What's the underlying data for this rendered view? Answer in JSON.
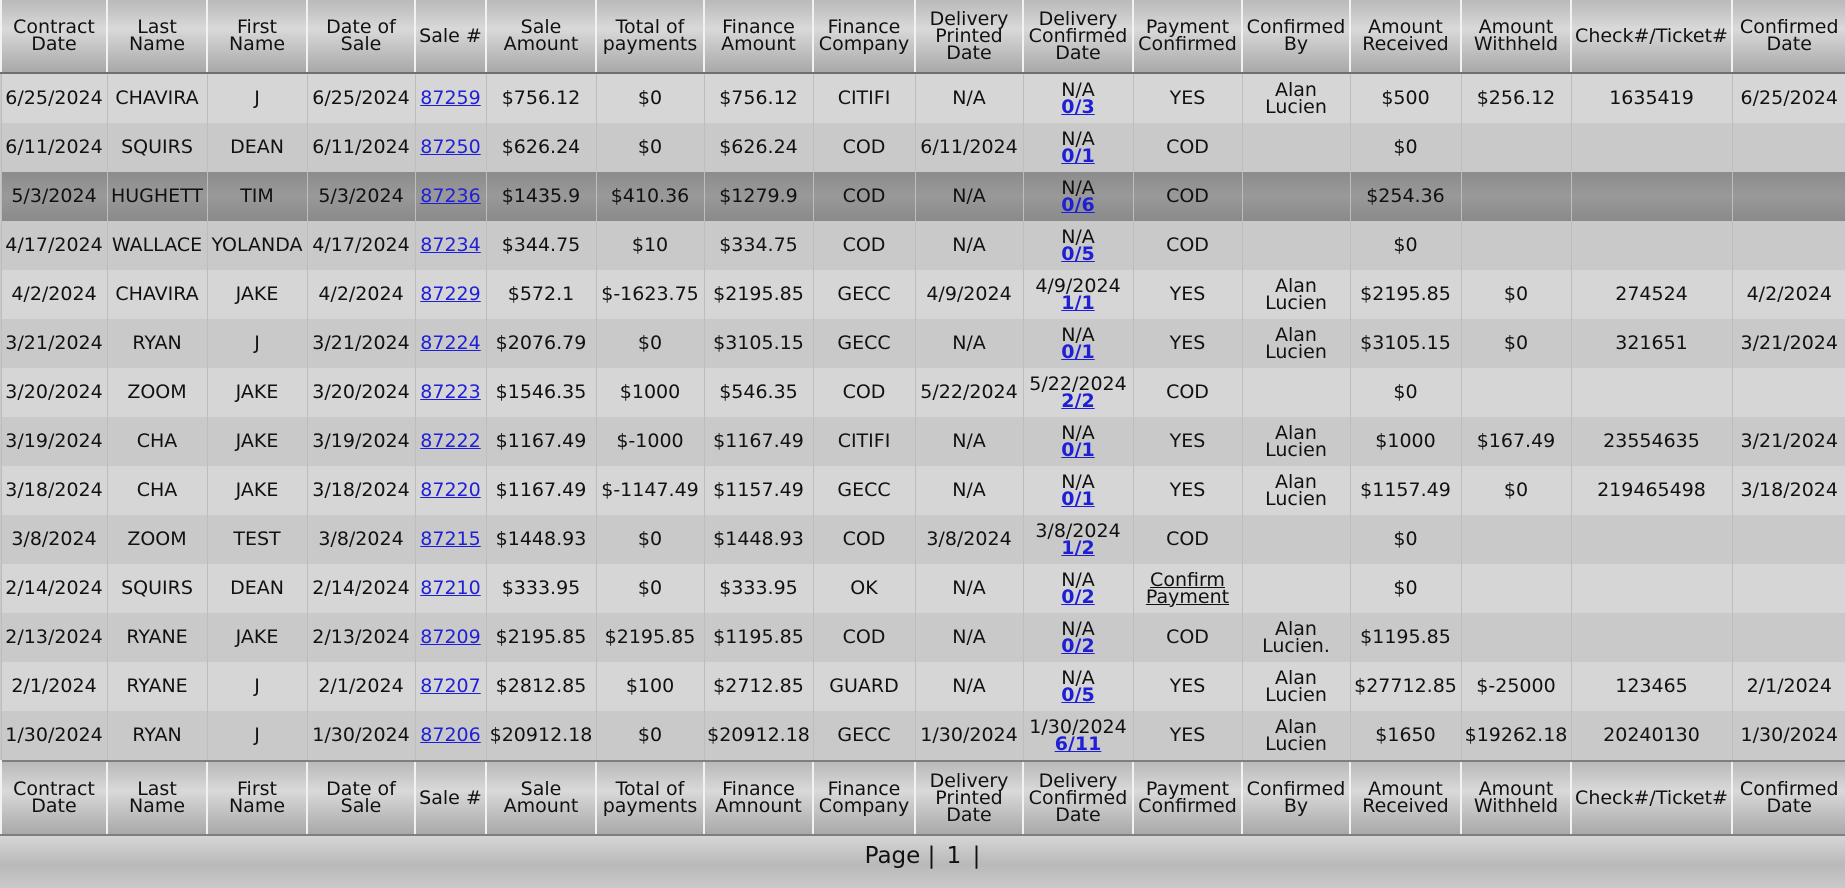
{
  "headers": [
    "Contract Date",
    "Last Name",
    "First Name",
    "Date of Sale",
    "Sale #",
    "Sale Amount",
    "Total of payments",
    "Finance Amount",
    "Finance Company",
    "Delivery Printed Date",
    "Delivery Confirmed Date",
    "Payment Confirmed",
    "Confirmed By",
    "Amount Received",
    "Amount Withheld",
    "Check#/Ticket#",
    "Confirmed Date"
  ],
  "footer_headers": [
    "Contract Date",
    "Last Name",
    "First Name",
    "Date of Sale",
    "Sale #",
    "Sale Amount",
    "Total of payments",
    "Finance Amnount",
    "Finance Company",
    "Delivery Printed Date",
    "Delivery Confirmed Date",
    "Payment Confirmed",
    "Confirmed By",
    "Amount Received",
    "Amount Withheld",
    "Check#/Ticket#",
    "Confirmed Date"
  ],
  "rows": [
    {
      "contract_date": "6/25/2024",
      "last": "CHAVIRA",
      "first": "J",
      "sale_date": "6/25/2024",
      "sale_no": "87259",
      "sale_amount": "$756.12",
      "total_payments": "$0",
      "finance_amount": "$756.12",
      "finance_company": "CITIFI",
      "delivery_printed": "N/A",
      "delivery_confirmed": "N/A",
      "delivery_count": "0/3",
      "payment_confirmed": "YES",
      "confirmed_by": "Alan Lucien",
      "amount_received": "$500",
      "amount_withheld": "$256.12",
      "check_no": "1635419",
      "confirmed_date": "6/25/2024"
    },
    {
      "contract_date": "6/11/2024",
      "last": "SQUIRS",
      "first": "DEAN",
      "sale_date": "6/11/2024",
      "sale_no": "87250",
      "sale_amount": "$626.24",
      "total_payments": "$0",
      "finance_amount": "$626.24",
      "finance_company": "COD",
      "delivery_printed": "6/11/2024",
      "delivery_confirmed": "N/A",
      "delivery_count": "0/1",
      "payment_confirmed": "COD",
      "confirmed_by": "",
      "amount_received": "$0",
      "amount_withheld": "",
      "check_no": "",
      "confirmed_date": ""
    },
    {
      "contract_date": "5/3/2024",
      "last": "HUGHETT",
      "first": "TIM",
      "sale_date": "5/3/2024",
      "sale_no": "87236",
      "sale_amount": "$1435.9",
      "total_payments": "$410.36",
      "finance_amount": "$1279.9",
      "finance_company": "COD",
      "delivery_printed": "N/A",
      "delivery_confirmed": "N/A",
      "delivery_count": "0/6",
      "payment_confirmed": "COD",
      "confirmed_by": "",
      "amount_received": "$254.36",
      "amount_withheld": "",
      "check_no": "",
      "confirmed_date": "",
      "selected": true
    },
    {
      "contract_date": "4/17/2024",
      "last": "WALLACE",
      "first": "YOLANDA",
      "sale_date": "4/17/2024",
      "sale_no": "87234",
      "sale_amount": "$344.75",
      "total_payments": "$10",
      "finance_amount": "$334.75",
      "finance_company": "COD",
      "delivery_printed": "N/A",
      "delivery_confirmed": "N/A",
      "delivery_count": "0/5",
      "payment_confirmed": "COD",
      "confirmed_by": "",
      "amount_received": "$0",
      "amount_withheld": "",
      "check_no": "",
      "confirmed_date": ""
    },
    {
      "contract_date": "4/2/2024",
      "last": "CHAVIRA",
      "first": "JAKE",
      "sale_date": "4/2/2024",
      "sale_no": "87229",
      "sale_amount": "$572.1",
      "total_payments": "$-1623.75",
      "finance_amount": "$2195.85",
      "finance_company": "GECC",
      "delivery_printed": "4/9/2024",
      "delivery_confirmed": "4/9/2024",
      "delivery_count": "1/1",
      "payment_confirmed": "YES",
      "confirmed_by": "Alan Lucien",
      "amount_received": "$2195.85",
      "amount_withheld": "$0",
      "check_no": "274524",
      "confirmed_date": "4/2/2024"
    },
    {
      "contract_date": "3/21/2024",
      "last": "RYAN",
      "first": "J",
      "sale_date": "3/21/2024",
      "sale_no": "87224",
      "sale_amount": "$2076.79",
      "total_payments": "$0",
      "finance_amount": "$3105.15",
      "finance_company": "GECC",
      "delivery_printed": "N/A",
      "delivery_confirmed": "N/A",
      "delivery_count": "0/1",
      "payment_confirmed": "YES",
      "confirmed_by": "Alan Lucien",
      "amount_received": "$3105.15",
      "amount_withheld": "$0",
      "check_no": "321651",
      "confirmed_date": "3/21/2024"
    },
    {
      "contract_date": "3/20/2024",
      "last": "ZOOM",
      "first": "JAKE",
      "sale_date": "3/20/2024",
      "sale_no": "87223",
      "sale_amount": "$1546.35",
      "total_payments": "$1000",
      "finance_amount": "$546.35",
      "finance_company": "COD",
      "delivery_printed": "5/22/2024",
      "delivery_confirmed": "5/22/2024",
      "delivery_count": "2/2",
      "payment_confirmed": "COD",
      "confirmed_by": "",
      "amount_received": "$0",
      "amount_withheld": "",
      "check_no": "",
      "confirmed_date": ""
    },
    {
      "contract_date": "3/19/2024",
      "last": "CHA",
      "first": "JAKE",
      "sale_date": "3/19/2024",
      "sale_no": "87222",
      "sale_amount": "$1167.49",
      "total_payments": "$-1000",
      "finance_amount": "$1167.49",
      "finance_company": "CITIFI",
      "delivery_printed": "N/A",
      "delivery_confirmed": "N/A",
      "delivery_count": "0/1",
      "payment_confirmed": "YES",
      "confirmed_by": "Alan Lucien",
      "amount_received": "$1000",
      "amount_withheld": "$167.49",
      "check_no": "23554635",
      "confirmed_date": "3/21/2024"
    },
    {
      "contract_date": "3/18/2024",
      "last": "CHA",
      "first": "JAKE",
      "sale_date": "3/18/2024",
      "sale_no": "87220",
      "sale_amount": "$1167.49",
      "total_payments": "$-1147.49",
      "finance_amount": "$1157.49",
      "finance_company": "GECC",
      "delivery_printed": "N/A",
      "delivery_confirmed": "N/A",
      "delivery_count": "0/1",
      "payment_confirmed": "YES",
      "confirmed_by": "Alan Lucien",
      "amount_received": "$1157.49",
      "amount_withheld": "$0",
      "check_no": "219465498",
      "confirmed_date": "3/18/2024"
    },
    {
      "contract_date": "3/8/2024",
      "last": "ZOOM",
      "first": "TEST",
      "sale_date": "3/8/2024",
      "sale_no": "87215",
      "sale_amount": "$1448.93",
      "total_payments": "$0",
      "finance_amount": "$1448.93",
      "finance_company": "COD",
      "delivery_printed": "3/8/2024",
      "delivery_confirmed": "3/8/2024",
      "delivery_count": "1/2",
      "payment_confirmed": "COD",
      "confirmed_by": "",
      "amount_received": "$0",
      "amount_withheld": "",
      "check_no": "",
      "confirmed_date": ""
    },
    {
      "contract_date": "2/14/2024",
      "last": "SQUIRS",
      "first": "DEAN",
      "sale_date": "2/14/2024",
      "sale_no": "87210",
      "sale_amount": "$333.95",
      "total_payments": "$0",
      "finance_amount": "$333.95",
      "finance_company": "OK",
      "delivery_printed": "N/A",
      "delivery_confirmed": "N/A",
      "delivery_count": "0/2",
      "payment_confirmed": "Confirm Payment",
      "payment_link": true,
      "confirmed_by": "",
      "amount_received": "$0",
      "amount_withheld": "",
      "check_no": "",
      "confirmed_date": ""
    },
    {
      "contract_date": "2/13/2024",
      "last": "RYANE",
      "first": "JAKE",
      "sale_date": "2/13/2024",
      "sale_no": "87209",
      "sale_amount": "$2195.85",
      "total_payments": "$2195.85",
      "finance_amount": "$1195.85",
      "finance_company": "COD",
      "delivery_printed": "N/A",
      "delivery_confirmed": "N/A",
      "delivery_count": "0/2",
      "payment_confirmed": "COD",
      "confirmed_by": "Alan Lucien.",
      "amount_received": "$1195.85",
      "amount_withheld": "",
      "check_no": "",
      "confirmed_date": ""
    },
    {
      "contract_date": "2/1/2024",
      "last": "RYANE",
      "first": "J",
      "sale_date": "2/1/2024",
      "sale_no": "87207",
      "sale_amount": "$2812.85",
      "total_payments": "$100",
      "finance_amount": "$2712.85",
      "finance_company": "GUARD",
      "delivery_printed": "N/A",
      "delivery_confirmed": "N/A",
      "delivery_count": "0/5",
      "payment_confirmed": "YES",
      "confirmed_by": "Alan Lucien",
      "amount_received": "$27712.85",
      "amount_withheld": "$-25000",
      "check_no": "123465",
      "confirmed_date": "2/1/2024"
    },
    {
      "contract_date": "1/30/2024",
      "last": "RYAN",
      "first": "J",
      "sale_date": "1/30/2024",
      "sale_no": "87206",
      "sale_amount": "$20912.18",
      "total_payments": "$0",
      "finance_amount": "$20912.18",
      "finance_company": "GECC",
      "delivery_printed": "1/30/2024",
      "delivery_confirmed": "1/30/2024",
      "delivery_count": "6/11",
      "payment_confirmed": "YES",
      "confirmed_by": "Alan Lucien",
      "amount_received": "$1650",
      "amount_withheld": "$19262.18",
      "check_no": "20240130",
      "confirmed_date": "1/30/2024"
    }
  ],
  "pager": {
    "label": "Page |",
    "pages": [
      "1"
    ],
    "separator": "|"
  }
}
